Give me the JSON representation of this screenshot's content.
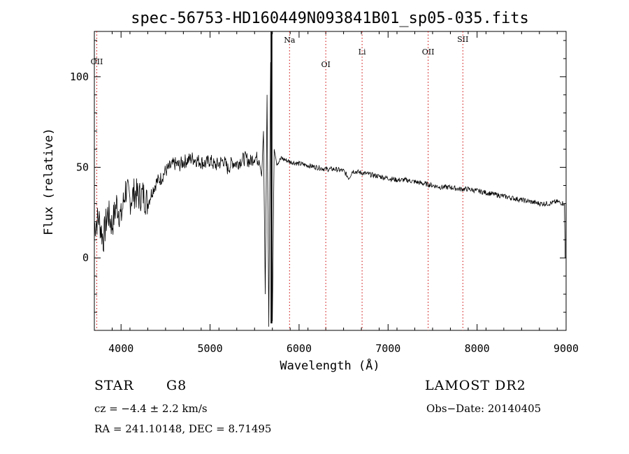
{
  "chart_data": {
    "type": "line",
    "title": "spec-56753-HD160449N093841B01_sp05-035.fits",
    "xlabel": "Wavelength (Å)",
    "ylabel": "Flux (relative)",
    "xlim": [
      3700,
      9000
    ],
    "ylim": [
      -40,
      125
    ],
    "x_ticks": [
      4000,
      5000,
      6000,
      7000,
      8000,
      9000
    ],
    "y_ticks": [
      0,
      50,
      100
    ],
    "grid": false,
    "series": [
      {
        "x": [
          3700,
          3750,
          3800,
          3850,
          3900,
          3950,
          4000,
          4050,
          4100,
          4150,
          4200,
          4250,
          4300,
          4350,
          4400,
          4450,
          4500,
          4550,
          4600,
          4650,
          4700,
          4750,
          4800,
          4850,
          4900,
          4950,
          5000,
          5050,
          5100,
          5150,
          5200,
          5250,
          5300,
          5350,
          5400,
          5450,
          5500,
          5550,
          5580,
          5600,
          5620,
          5640,
          5660,
          5680,
          5700,
          5720,
          5750,
          5800,
          5850,
          5900,
          6000,
          6100,
          6200,
          6300,
          6400,
          6500,
          6560,
          6600,
          6700,
          6800,
          6900,
          7000,
          7100,
          7200,
          7300,
          7400,
          7500,
          7600,
          7700,
          7800,
          7900,
          8000,
          8100,
          8200,
          8300,
          8400,
          8500,
          8600,
          8700,
          8800,
          8900,
          8980
        ],
        "y": [
          18,
          22,
          10,
          25,
          18,
          30,
          22,
          38,
          32,
          36,
          34,
          35,
          30,
          37,
          42,
          44,
          48,
          50,
          52,
          51,
          53,
          54,
          55,
          54,
          53,
          52,
          54,
          51,
          52,
          54,
          49,
          53,
          52,
          54,
          55,
          53,
          56,
          54,
          45,
          70,
          -20,
          90,
          -38,
          108,
          -35,
          60,
          52,
          55,
          54,
          53,
          52,
          51,
          50,
          49,
          49,
          48,
          44,
          48,
          47,
          46,
          45,
          44,
          43,
          43,
          42,
          41,
          40,
          39,
          39,
          38,
          38,
          37,
          36,
          35,
          34,
          33,
          32,
          31,
          30,
          30,
          31,
          30
        ]
      }
    ],
    "spectral_lines": [
      {
        "label": "OII",
        "x": 3727
      },
      {
        "label": "Na",
        "x": 5893
      },
      {
        "label": "OI",
        "x": 6300
      },
      {
        "label": "Li",
        "x": 6708
      },
      {
        "label": "OII",
        "x": 7450
      },
      {
        "label": "SII",
        "x": 7840
      }
    ],
    "line_color": "#cc0000"
  },
  "info": {
    "class_label": "STAR",
    "subclass": "G8",
    "survey": "LAMOST DR2",
    "redshift": "cz = −4.4 ± 2.2 km/s",
    "obs_date": "Obs−Date: 20140405",
    "coords": "RA = 241.10148, DEC =   8.71495"
  }
}
